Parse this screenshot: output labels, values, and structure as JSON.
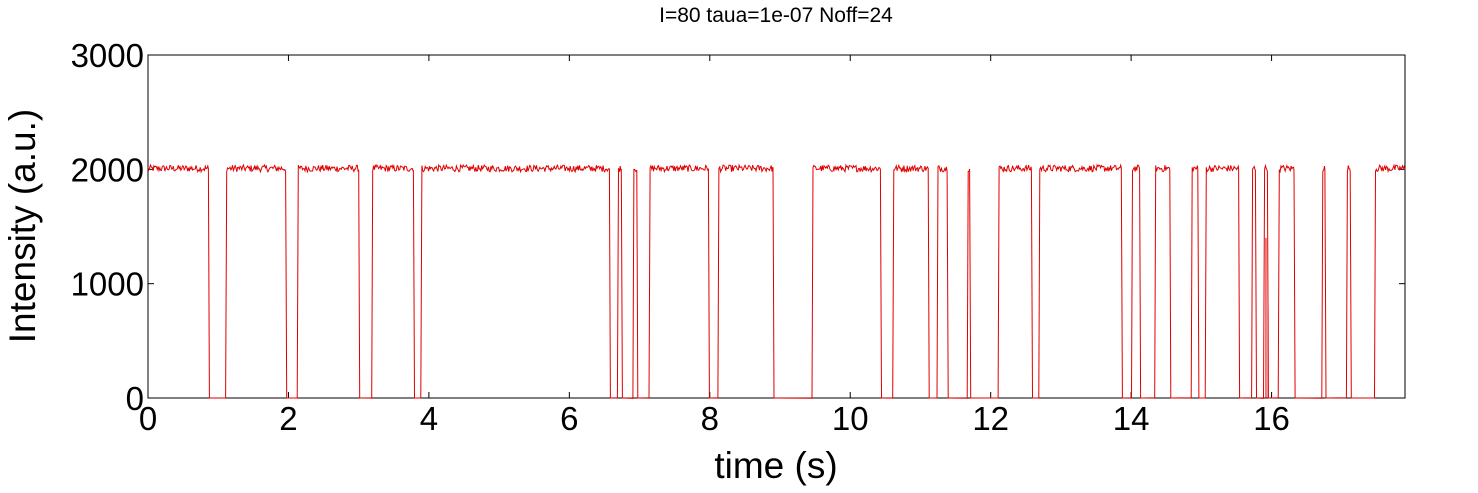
{
  "chart_data": {
    "type": "line",
    "title": "I=80 taua=1e-07 Noff=24",
    "xlabel": "time (s)",
    "ylabel": "Intensity (a.u.)",
    "xlim": [
      0,
      17.9
    ],
    "ylim": [
      0,
      3000
    ],
    "xticks": [
      "0",
      "2",
      "4",
      "6",
      "8",
      "10",
      "12",
      "14",
      "16"
    ],
    "yticks": [
      "0",
      "1000",
      "2000",
      "3000"
    ],
    "grid": false,
    "legend": "none",
    "series": [
      {
        "color": "#e00000",
        "on_level": 2000,
        "off_level": 0,
        "on_intervals": [
          [
            0.0,
            0.86
          ],
          [
            1.12,
            1.96
          ],
          [
            2.14,
            3.0
          ],
          [
            3.2,
            3.78
          ],
          [
            3.9,
            6.57
          ],
          [
            6.7,
            6.74
          ],
          [
            6.92,
            6.96
          ],
          [
            7.15,
            7.98
          ],
          [
            8.13,
            8.9
          ],
          [
            9.47,
            10.43
          ],
          [
            10.62,
            11.11
          ],
          [
            11.25,
            11.38
          ],
          [
            11.68,
            11.7
          ],
          [
            12.12,
            12.58
          ],
          [
            12.7,
            13.86
          ],
          [
            14.02,
            14.12
          ],
          [
            14.35,
            14.55
          ],
          [
            14.87,
            14.95
          ],
          [
            15.07,
            15.53
          ],
          [
            15.73,
            15.77
          ],
          [
            15.9,
            15.94
          ],
          [
            16.11,
            16.32
          ],
          [
            16.73,
            16.76
          ],
          [
            17.08,
            17.12
          ],
          [
            17.48,
            17.9
          ]
        ],
        "spikes": [
          [
            15.92,
            1400
          ],
          [
            15.95,
            800
          ]
        ]
      }
    ]
  }
}
